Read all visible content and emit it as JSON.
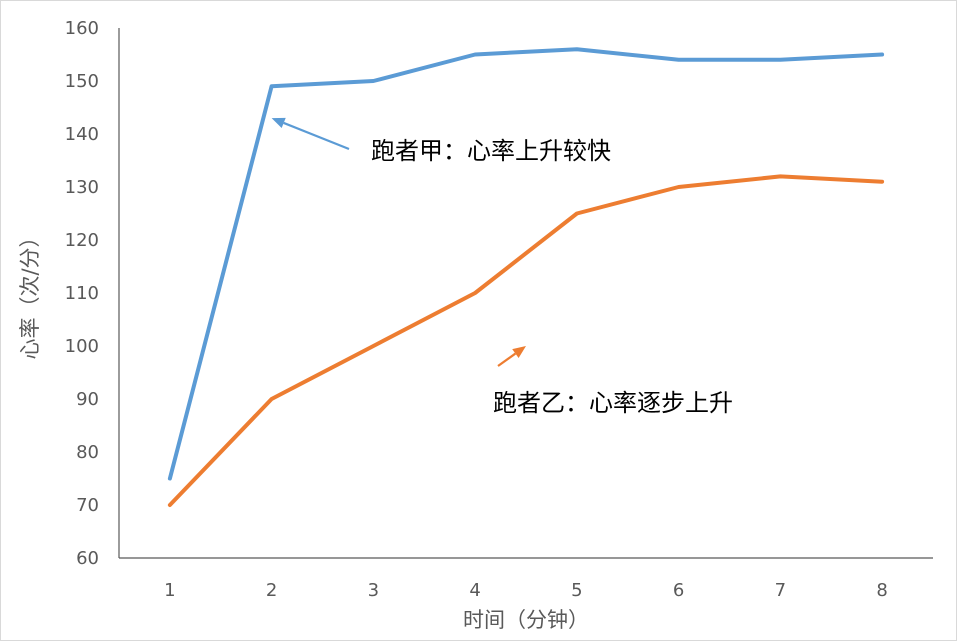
{
  "chart_data": {
    "type": "line",
    "title": "",
    "xlabel": "时间（分钟）",
    "ylabel": "心率（次/分）",
    "categories": [
      1,
      2,
      3,
      4,
      5,
      6,
      7,
      8
    ],
    "ylim": [
      60,
      160
    ],
    "yticks": [
      60,
      70,
      80,
      90,
      100,
      110,
      120,
      130,
      140,
      150,
      160
    ],
    "grid": false,
    "legend": "none",
    "series": [
      {
        "values": [
          75,
          149,
          150,
          155,
          156,
          154,
          154,
          155
        ],
        "color": "#5B9BD5"
      },
      {
        "values": [
          70,
          90,
          100,
          110,
          125,
          130,
          132,
          131
        ],
        "color": "#ED7D31"
      }
    ],
    "annotations": [
      {
        "text": "跑者甲：心率上升较快",
        "points_to": {
          "x": 2,
          "y": 143
        },
        "color": "#5B9BD5"
      },
      {
        "text": "跑者乙：心率逐步上升",
        "points_to": {
          "x": 4.5,
          "y": 100
        },
        "color": "#ED7D31"
      }
    ]
  }
}
